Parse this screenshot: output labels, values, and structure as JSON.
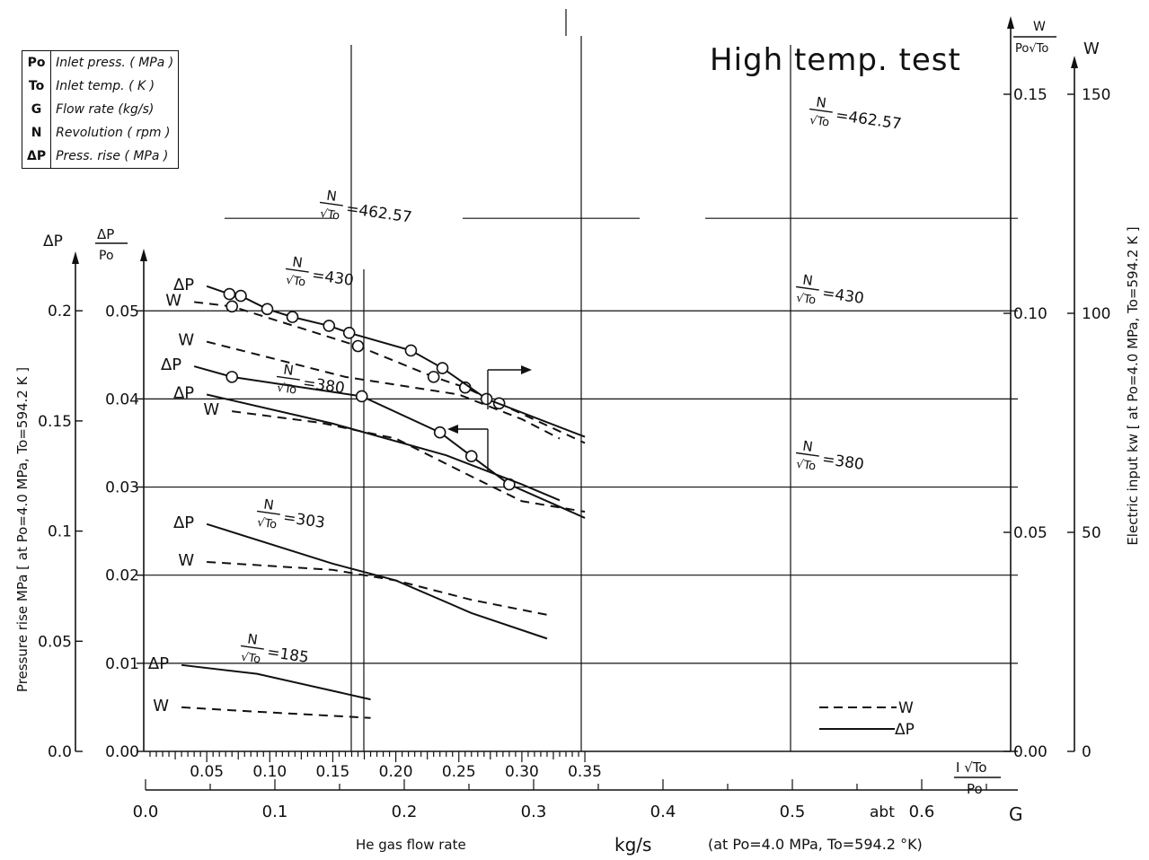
{
  "chart_data": {
    "type": "line",
    "title": "High temp. test",
    "legend_table": [
      {
        "symbol": "Po",
        "description": "Inlet press. ( MPa )"
      },
      {
        "symbol": "To",
        "description": "Inlet temp. ( K )"
      },
      {
        "symbol": "G",
        "description": "Flow rate (kg/s)"
      },
      {
        "symbol": "N",
        "description": "Revolution ( rpm )"
      },
      {
        "symbol": "ΔP",
        "description": "Press. rise ( MPa )"
      }
    ],
    "axes": {
      "left_outer": {
        "label": "Pressure rise MPa [ at Po=4.0 MPa, To=594.2 K ]",
        "symbol": "ΔP",
        "ticks": [
          "0.0",
          "0.05",
          "0.1",
          "0.15",
          "0.2"
        ],
        "range": [
          0,
          0.2
        ]
      },
      "left_inner": {
        "symbol_top": "ΔP",
        "symbol_bottom": "Po",
        "ticks": [
          "0.00",
          "0.01",
          "0.02",
          "0.03",
          "0.04",
          "0.05"
        ],
        "range": [
          0,
          0.05
        ]
      },
      "x_reduced": {
        "label_top": "I √To",
        "label_bottom": "Po",
        "ticks": [
          "0.05",
          "0.10",
          "0.15",
          "0.20",
          "0.25",
          "0.30",
          "0.35"
        ],
        "range": [
          0,
          0.35
        ]
      },
      "x_flow": {
        "label": "He gas flow rate",
        "unit": "kg/s",
        "condition": "(at Po=4.0 MPa, To=594.2 °K)",
        "end_label": "G",
        "abt_label": "abt",
        "ticks": [
          "0.0",
          "0.1",
          "0.2",
          "0.3",
          "0.4",
          "0.5",
          "0.6"
        ],
        "range": [
          0,
          0.6
        ]
      },
      "right_inner": {
        "symbol_top": "W",
        "symbol_bottom": "Po√To",
        "ticks": [
          "0.00",
          "0.05",
          "0.10",
          "0.15"
        ],
        "range": [
          0,
          0.15
        ]
      },
      "right_outer": {
        "label": "Electric input kw [ at Po=4.0 MPa, To=594.2 K ]",
        "symbol": "W",
        "ticks": [
          "0",
          "50",
          "100",
          "150"
        ],
        "range": [
          0,
          150
        ]
      }
    },
    "series": [
      {
        "kind": "W",
        "label": "W",
        "annotation": "N/√To = 462.57",
        "style": "dashed",
        "x": [
          0.04,
          0.07,
          0.17,
          0.23,
          0.255,
          0.282,
          0.35
        ],
        "y": [
          0.051,
          0.0505,
          0.046,
          0.0425,
          0.0413,
          0.0395,
          0.035
        ],
        "markers": [
          0.07,
          0.17,
          0.23,
          0.255,
          0.282
        ]
      },
      {
        "kind": "ΔP",
        "label": "ΔP",
        "annotation": "N/√To = 462.57",
        "style": "solid",
        "x": [
          0.04,
          0.07,
          0.173,
          0.235,
          0.26,
          0.29,
          0.35
        ],
        "y": [
          0.0437,
          0.0425,
          0.0403,
          0.0362,
          0.0335,
          0.0303,
          0.0265
        ],
        "markers": [
          0.07,
          0.173,
          0.235,
          0.26,
          0.29
        ]
      },
      {
        "kind": "W",
        "label": "W",
        "annotation": "N/√To = 430",
        "style": "dashed",
        "x": [
          0.07,
          0.14,
          0.2,
          0.26,
          0.3,
          0.35
        ],
        "y": [
          0.0386,
          0.0373,
          0.0355,
          0.0312,
          0.0284,
          0.0272
        ],
        "markers": []
      },
      {
        "kind": "ΔP",
        "label": "ΔP",
        "annotation": "N/√To = 430",
        "style": "solid",
        "x": [
          0.05,
          0.068,
          0.077,
          0.098,
          0.118,
          0.147,
          0.163,
          0.212,
          0.237,
          0.272,
          0.35
        ],
        "y": [
          0.0528,
          0.0519,
          0.0517,
          0.0502,
          0.0493,
          0.0483,
          0.0475,
          0.0455,
          0.0435,
          0.04,
          0.0357
        ],
        "markers": [
          0.068,
          0.077,
          0.098,
          0.118,
          0.147,
          0.163,
          0.212,
          0.237,
          0.272
        ]
      },
      {
        "kind": "W",
        "label": "W",
        "annotation": "N/√To = 380",
        "style": "dashed",
        "x": [
          0.05,
          0.16,
          0.25,
          0.3,
          0.33
        ],
        "y": [
          0.0465,
          0.0425,
          0.0405,
          0.0377,
          0.0355
        ],
        "markers": []
      },
      {
        "kind": "ΔP",
        "label": "ΔP",
        "annotation": "N/√To = 380",
        "style": "solid",
        "x": [
          0.05,
          0.15,
          0.24,
          0.3,
          0.33
        ],
        "y": [
          0.0405,
          0.0372,
          0.0336,
          0.0303,
          0.0285
        ],
        "markers": []
      },
      {
        "kind": "W",
        "label": "W",
        "annotation": "N/√To = 303",
        "style": "dashed",
        "x": [
          0.05,
          0.15,
          0.2,
          0.26,
          0.32
        ],
        "y": [
          0.0215,
          0.0206,
          0.0194,
          0.0172,
          0.0155
        ],
        "markers": []
      },
      {
        "kind": "ΔP",
        "label": "ΔP",
        "annotation": "N/√To = 303",
        "style": "solid",
        "x": [
          0.05,
          0.15,
          0.2,
          0.26,
          0.32
        ],
        "y": [
          0.0258,
          0.0213,
          0.0194,
          0.0157,
          0.0128
        ],
        "markers": []
      },
      {
        "kind": "W",
        "label": "W",
        "annotation": "N/√To = 185",
        "style": "dashed",
        "x": [
          0.03,
          0.09,
          0.18
        ],
        "y": [
          0.005,
          0.0045,
          0.0038
        ],
        "markers": []
      },
      {
        "kind": "ΔP",
        "label": "ΔP",
        "annotation": "N/√To = 185",
        "style": "solid",
        "x": [
          0.03,
          0.09,
          0.18
        ],
        "y": [
          0.0098,
          0.0088,
          0.0059
        ],
        "markers": []
      }
    ],
    "legend": [
      {
        "name": "W",
        "style": "dashed"
      },
      {
        "name": "ΔP",
        "style": "solid"
      }
    ],
    "grid": true
  }
}
